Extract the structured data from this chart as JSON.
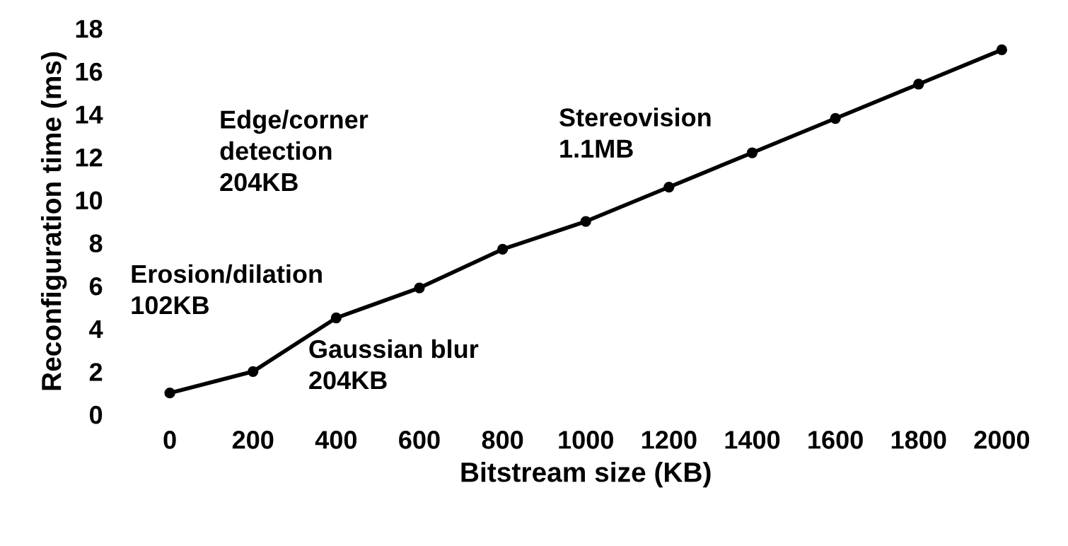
{
  "chart_data": {
    "type": "line",
    "xlabel": "Bitstream size (KB)",
    "ylabel": "Reconfiguration time (ms)",
    "x": [
      0,
      200,
      400,
      600,
      800,
      1000,
      1200,
      1400,
      1600,
      1800,
      2000
    ],
    "series": [
      {
        "color": "#000000",
        "values": [
          1,
          2,
          4.5,
          5.9,
          7.7,
          9,
          10.6,
          12.2,
          13.8,
          15.4,
          17
        ]
      }
    ],
    "marker": "circle",
    "line_style": "solid",
    "xlim": [
      0,
      2000
    ],
    "xticks": [
      0,
      200,
      400,
      600,
      800,
      1000,
      1200,
      1400,
      1600,
      1800,
      2000
    ],
    "ylim": [
      0,
      18
    ],
    "yticks": [
      0,
      2,
      4,
      6,
      8,
      10,
      12,
      14,
      16,
      18
    ],
    "grid": false,
    "annotations": [
      "Erosion/dilation\n102KB",
      "Edge/corner\ndetection\n204KB",
      "Gaussian blur\n204KB",
      "Stereovision\n1.1MB"
    ]
  }
}
